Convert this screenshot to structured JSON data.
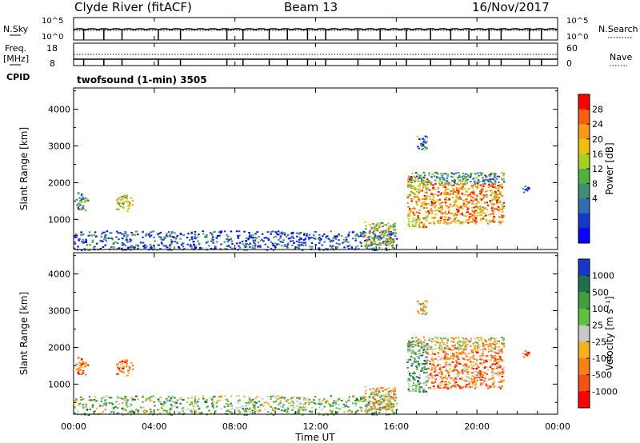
{
  "header": {
    "station": "Clyde River (fitACF)",
    "beam": "Beam 13",
    "date": "16/Nov/2017"
  },
  "mini_panels": {
    "nsky_label": "N.Sky",
    "nsky_ticks": [
      "10^5",
      "10^0"
    ],
    "nsearch_label": "N.Search",
    "nsearch_ticks": [
      "10^5",
      "10^0"
    ],
    "freq_label": "Freq.",
    "freq_unit": "[MHz]",
    "freq_ticks": [
      "18",
      "8"
    ],
    "nave_label": "Nave",
    "nave_ticks": [
      "60",
      "0"
    ],
    "cpid_label": "CPID",
    "cpid_value": "twofsound (1-min) 3505"
  },
  "chart_data": [
    {
      "type": "heatmap",
      "name": "power",
      "ylabel": "Slant Range [km]",
      "ylim": [
        180,
        4580
      ],
      "yticks": [
        1000,
        2000,
        3000,
        4000
      ],
      "xlim": [
        0,
        24
      ],
      "colorbar": {
        "label": "Power [dB]",
        "ticks": [
          "28",
          "24",
          "20",
          "16",
          "12",
          "8",
          "4"
        ],
        "colors": [
          "#ff0000",
          "#f86010",
          "#f89a18",
          "#f0c010",
          "#a8d020",
          "#50b040",
          "#408f70",
          "#2f6fb0",
          "#1538c8",
          "#0a00ff"
        ]
      },
      "regions": [
        {
          "t0": 0.0,
          "t1": 16.0,
          "r0": 180,
          "r1": 700,
          "level": 0.2
        },
        {
          "t0": 0.1,
          "t1": 0.7,
          "r0": 1250,
          "r1": 1750,
          "level": 0.35
        },
        {
          "t0": 2.1,
          "t1": 2.9,
          "r0": 1250,
          "r1": 1700,
          "level": 0.55
        },
        {
          "t0": 14.4,
          "t1": 15.9,
          "r0": 300,
          "r1": 950,
          "level": 0.55
        },
        {
          "t0": 16.5,
          "t1": 17.5,
          "r0": 800,
          "r1": 2200,
          "level": 0.7
        },
        {
          "t0": 17.5,
          "t1": 21.3,
          "r0": 900,
          "r1": 2000,
          "level": 0.75
        },
        {
          "t0": 16.6,
          "t1": 21.3,
          "r0": 2000,
          "r1": 2300,
          "level": 0.35
        },
        {
          "t0": 17.0,
          "t1": 17.5,
          "r0": 2900,
          "r1": 3300,
          "level": 0.3
        },
        {
          "t0": 22.2,
          "t1": 22.6,
          "r0": 1750,
          "r1": 1950,
          "level": 0.25
        }
      ]
    },
    {
      "type": "heatmap",
      "name": "velocity",
      "ylabel": "Slant Range [km]",
      "ylim": [
        180,
        4580
      ],
      "yticks": [
        1000,
        2000,
        3000,
        4000
      ],
      "xlim": [
        0,
        24
      ],
      "xticks": [
        "00:00",
        "04:00",
        "08:00",
        "12:00",
        "16:00",
        "20:00",
        "00:00"
      ],
      "xlabel": "Time UT",
      "colorbar": {
        "label": "Velocity [m s⁻¹]",
        "ticks": [
          "1000",
          "500",
          "100",
          "25",
          "-25",
          "-100",
          "-500",
          "-1000"
        ],
        "colors": [
          "#1538c8",
          "#207050",
          "#40a040",
          "#60c040",
          "#c8c8c8",
          "#f8b020",
          "#f88018",
          "#f85010",
          "#ff0000"
        ]
      },
      "regions": [
        {
          "t0": 0.0,
          "t1": 16.0,
          "r0": 180,
          "r1": 700,
          "level": 0.6
        },
        {
          "t0": 0.1,
          "t1": 0.7,
          "r0": 1250,
          "r1": 1750,
          "level": 0.25
        },
        {
          "t0": 2.1,
          "t1": 2.9,
          "r0": 1250,
          "r1": 1700,
          "level": 0.25
        },
        {
          "t0": 14.4,
          "t1": 15.9,
          "r0": 300,
          "r1": 950,
          "level": 0.45
        },
        {
          "t0": 16.5,
          "t1": 17.5,
          "r0": 800,
          "r1": 2200,
          "level": 0.7
        },
        {
          "t0": 17.5,
          "t1": 21.3,
          "r0": 900,
          "r1": 2000,
          "level": 0.3
        },
        {
          "t0": 16.6,
          "t1": 21.3,
          "r0": 2000,
          "r1": 2300,
          "level": 0.45
        },
        {
          "t0": 17.0,
          "t1": 17.5,
          "r0": 2900,
          "r1": 3300,
          "level": 0.45
        },
        {
          "t0": 22.2,
          "t1": 22.6,
          "r0": 1750,
          "r1": 1950,
          "level": 0.2
        }
      ]
    }
  ]
}
